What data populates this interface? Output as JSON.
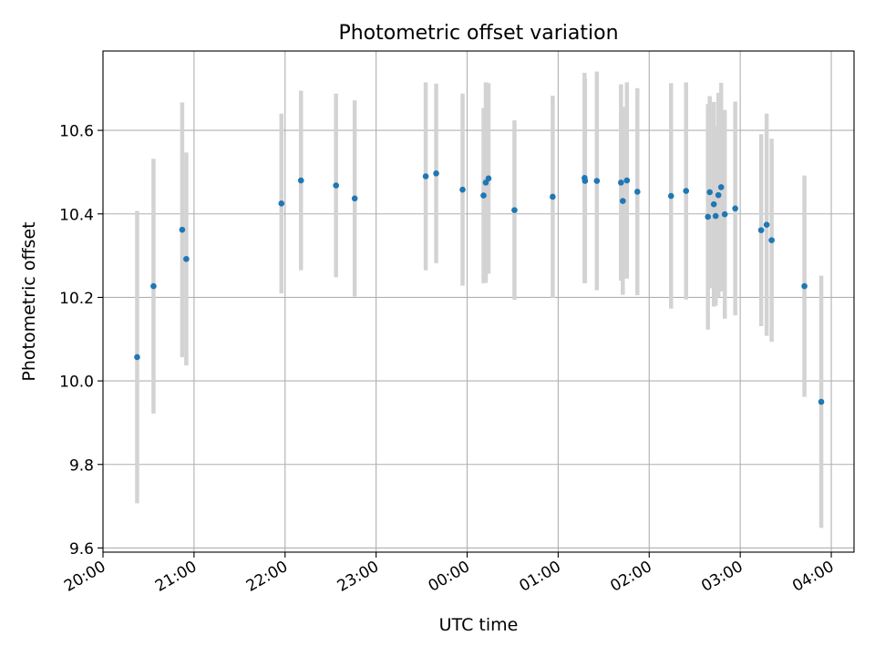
{
  "chart_data": {
    "type": "scatter",
    "title": "Photometric offset variation",
    "xlabel": "UTC time",
    "ylabel": "Photometric offset",
    "x_unit": "hours after 20:00 UTC",
    "xlim": [
      0,
      8.25
    ],
    "ylim": [
      9.59,
      10.79
    ],
    "x_ticks": [
      0,
      1,
      2,
      3,
      4,
      5,
      6,
      7,
      8
    ],
    "x_tick_labels": [
      "20:00",
      "21:00",
      "22:00",
      "23:00",
      "00:00",
      "01:00",
      "02:00",
      "03:00",
      "04:00"
    ],
    "y_ticks": [
      9.6,
      9.8,
      10.0,
      10.2,
      10.4,
      10.6
    ],
    "y_tick_labels": [
      "9.6",
      "9.8",
      "10.0",
      "10.2",
      "10.4",
      "10.6"
    ],
    "grid": true,
    "point_color": "#1f77b4",
    "error_color": "#d3d3d3",
    "series": [
      {
        "points": [
          {
            "x": 0.375,
            "y": 10.057,
            "err": 0.35
          },
          {
            "x": 0.555,
            "y": 10.227,
            "err": 0.305
          },
          {
            "x": 0.87,
            "y": 10.362,
            "err": 0.305
          },
          {
            "x": 0.915,
            "y": 10.292,
            "err": 0.255
          },
          {
            "x": 1.96,
            "y": 10.425,
            "err": 0.215
          },
          {
            "x": 2.175,
            "y": 10.48,
            "err": 0.215
          },
          {
            "x": 2.56,
            "y": 10.468,
            "err": 0.22
          },
          {
            "x": 2.765,
            "y": 10.437,
            "err": 0.235
          },
          {
            "x": 3.545,
            "y": 10.49,
            "err": 0.225
          },
          {
            "x": 3.66,
            "y": 10.497,
            "err": 0.215
          },
          {
            "x": 3.95,
            "y": 10.458,
            "err": 0.23
          },
          {
            "x": 4.18,
            "y": 10.444,
            "err": 0.21
          },
          {
            "x": 4.205,
            "y": 10.475,
            "err": 0.24
          },
          {
            "x": 4.235,
            "y": 10.485,
            "err": 0.228
          },
          {
            "x": 4.52,
            "y": 10.409,
            "err": 0.215
          },
          {
            "x": 4.94,
            "y": 10.441,
            "err": 0.242
          },
          {
            "x": 5.29,
            "y": 10.486,
            "err": 0.252
          },
          {
            "x": 5.295,
            "y": 10.479,
            "err": 0.245
          },
          {
            "x": 5.425,
            "y": 10.479,
            "err": 0.262
          },
          {
            "x": 5.69,
            "y": 10.475,
            "err": 0.235
          },
          {
            "x": 5.71,
            "y": 10.431,
            "err": 0.225
          },
          {
            "x": 5.755,
            "y": 10.48,
            "err": 0.235
          },
          {
            "x": 5.87,
            "y": 10.453,
            "err": 0.248
          },
          {
            "x": 6.24,
            "y": 10.443,
            "err": 0.27
          },
          {
            "x": 6.405,
            "y": 10.455,
            "err": 0.26
          },
          {
            "x": 6.645,
            "y": 10.393,
            "err": 0.27
          },
          {
            "x": 6.665,
            "y": 10.452,
            "err": 0.23
          },
          {
            "x": 6.71,
            "y": 10.423,
            "err": 0.245
          },
          {
            "x": 6.73,
            "y": 10.395,
            "err": 0.215
          },
          {
            "x": 6.76,
            "y": 10.445,
            "err": 0.245
          },
          {
            "x": 6.79,
            "y": 10.464,
            "err": 0.25
          },
          {
            "x": 6.83,
            "y": 10.399,
            "err": 0.25
          },
          {
            "x": 6.945,
            "y": 10.413,
            "err": 0.256
          },
          {
            "x": 7.23,
            "y": 10.361,
            "err": 0.23
          },
          {
            "x": 7.29,
            "y": 10.374,
            "err": 0.266
          },
          {
            "x": 7.345,
            "y": 10.337,
            "err": 0.243
          },
          {
            "x": 7.705,
            "y": 10.227,
            "err": 0.265
          },
          {
            "x": 7.89,
            "y": 9.95,
            "err": 0.302
          }
        ]
      }
    ]
  }
}
